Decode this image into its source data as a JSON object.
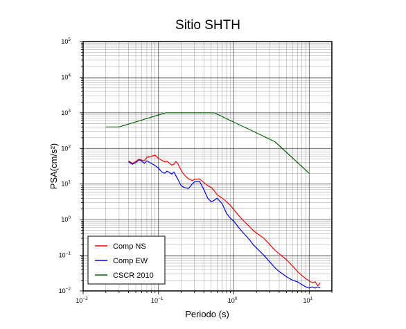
{
  "chart_data": {
    "type": "line",
    "title": "Sitio SHTH",
    "xlabel": "Periodo (s)",
    "ylabel": "PSA(cm/s²)",
    "x_scale": "log",
    "y_scale": "log",
    "xlim": [
      0.01,
      20
    ],
    "ylim": [
      0.01,
      100000
    ],
    "grid": true,
    "legend_position": "bottom-left",
    "x_ticks": [
      {
        "base": "10",
        "exp": "−2",
        "value": 0.01
      },
      {
        "base": "10",
        "exp": "−1",
        "value": 0.1
      },
      {
        "base": "10",
        "exp": "0",
        "value": 1
      },
      {
        "base": "10",
        "exp": "1",
        "value": 10
      }
    ],
    "y_ticks": [
      {
        "base": "10",
        "exp": "−2",
        "value": 0.01
      },
      {
        "base": "10",
        "exp": "−1",
        "value": 0.1
      },
      {
        "base": "10",
        "exp": "0",
        "value": 1
      },
      {
        "base": "10",
        "exp": "1",
        "value": 10
      },
      {
        "base": "10",
        "exp": "2",
        "value": 100
      },
      {
        "base": "10",
        "exp": "3",
        "value": 1000
      },
      {
        "base": "10",
        "exp": "4",
        "value": 10000
      },
      {
        "base": "10",
        "exp": "5",
        "value": 100000
      }
    ],
    "series": [
      {
        "name": "Comp NS",
        "color": "#ff0000",
        "points": [
          [
            0.04,
            45
          ],
          [
            0.045,
            38
          ],
          [
            0.05,
            43
          ],
          [
            0.055,
            50
          ],
          [
            0.06,
            47
          ],
          [
            0.065,
            45
          ],
          [
            0.07,
            56
          ],
          [
            0.08,
            60
          ],
          [
            0.09,
            65
          ],
          [
            0.1,
            52
          ],
          [
            0.11,
            47
          ],
          [
            0.12,
            42
          ],
          [
            0.13,
            44
          ],
          [
            0.14,
            38
          ],
          [
            0.15,
            34
          ],
          [
            0.16,
            36
          ],
          [
            0.17,
            43
          ],
          [
            0.18,
            38
          ],
          [
            0.19,
            30
          ],
          [
            0.2,
            24
          ],
          [
            0.22,
            18
          ],
          [
            0.25,
            14
          ],
          [
            0.28,
            12.5
          ],
          [
            0.3,
            13.5
          ],
          [
            0.35,
            14
          ],
          [
            0.4,
            11
          ],
          [
            0.45,
            9
          ],
          [
            0.5,
            8
          ],
          [
            0.55,
            6.5
          ],
          [
            0.6,
            5
          ],
          [
            0.7,
            4
          ],
          [
            0.8,
            3.2
          ],
          [
            0.9,
            2.5
          ],
          [
            1,
            1.9
          ],
          [
            1.2,
            1.2
          ],
          [
            1.4,
            0.85
          ],
          [
            1.6,
            0.65
          ],
          [
            1.8,
            0.5
          ],
          [
            2,
            0.42
          ],
          [
            2.5,
            0.3
          ],
          [
            3,
            0.2
          ],
          [
            3.5,
            0.14
          ],
          [
            4,
            0.11
          ],
          [
            5,
            0.075
          ],
          [
            6,
            0.05
          ],
          [
            7,
            0.035
          ],
          [
            8,
            0.027
          ],
          [
            9,
            0.022
          ],
          [
            10,
            0.019
          ],
          [
            11,
            0.017
          ],
          [
            12,
            0.018
          ],
          [
            13,
            0.014
          ],
          [
            14,
            0.017
          ]
        ]
      },
      {
        "name": "Comp EW",
        "color": "#0000ff",
        "points": [
          [
            0.04,
            42
          ],
          [
            0.045,
            36
          ],
          [
            0.05,
            40
          ],
          [
            0.055,
            48
          ],
          [
            0.06,
            44
          ],
          [
            0.065,
            38
          ],
          [
            0.07,
            45
          ],
          [
            0.08,
            38
          ],
          [
            0.09,
            33
          ],
          [
            0.1,
            28
          ],
          [
            0.11,
            22
          ],
          [
            0.12,
            20
          ],
          [
            0.13,
            23
          ],
          [
            0.14,
            21
          ],
          [
            0.15,
            19
          ],
          [
            0.16,
            22
          ],
          [
            0.17,
            17
          ],
          [
            0.18,
            14
          ],
          [
            0.19,
            11
          ],
          [
            0.2,
            9
          ],
          [
            0.22,
            8
          ],
          [
            0.25,
            7.5
          ],
          [
            0.28,
            10
          ],
          [
            0.3,
            11.5
          ],
          [
            0.35,
            12
          ],
          [
            0.4,
            7
          ],
          [
            0.45,
            4
          ],
          [
            0.5,
            3.2
          ],
          [
            0.55,
            3.5
          ],
          [
            0.6,
            4
          ],
          [
            0.7,
            2.8
          ],
          [
            0.8,
            1.5
          ],
          [
            0.9,
            1.1
          ],
          [
            1,
            0.9
          ],
          [
            1.2,
            0.55
          ],
          [
            1.4,
            0.38
          ],
          [
            1.6,
            0.28
          ],
          [
            1.8,
            0.2
          ],
          [
            2,
            0.16
          ],
          [
            2.5,
            0.1
          ],
          [
            3,
            0.065
          ],
          [
            3.5,
            0.045
          ],
          [
            4,
            0.035
          ],
          [
            5,
            0.025
          ],
          [
            6,
            0.02
          ],
          [
            7,
            0.018
          ],
          [
            8,
            0.015
          ],
          [
            9,
            0.013
          ],
          [
            10,
            0.012
          ],
          [
            11,
            0.013
          ],
          [
            12,
            0.012
          ],
          [
            13,
            0.013
          ],
          [
            14,
            0.012
          ]
        ]
      },
      {
        "name": "CSCR 2010",
        "color": "#006400",
        "points": [
          [
            0.02,
            400
          ],
          [
            0.03,
            400
          ],
          [
            0.125,
            1000
          ],
          [
            0.55,
            1000
          ],
          [
            3.5,
            155
          ],
          [
            10,
            20
          ]
        ]
      }
    ]
  }
}
